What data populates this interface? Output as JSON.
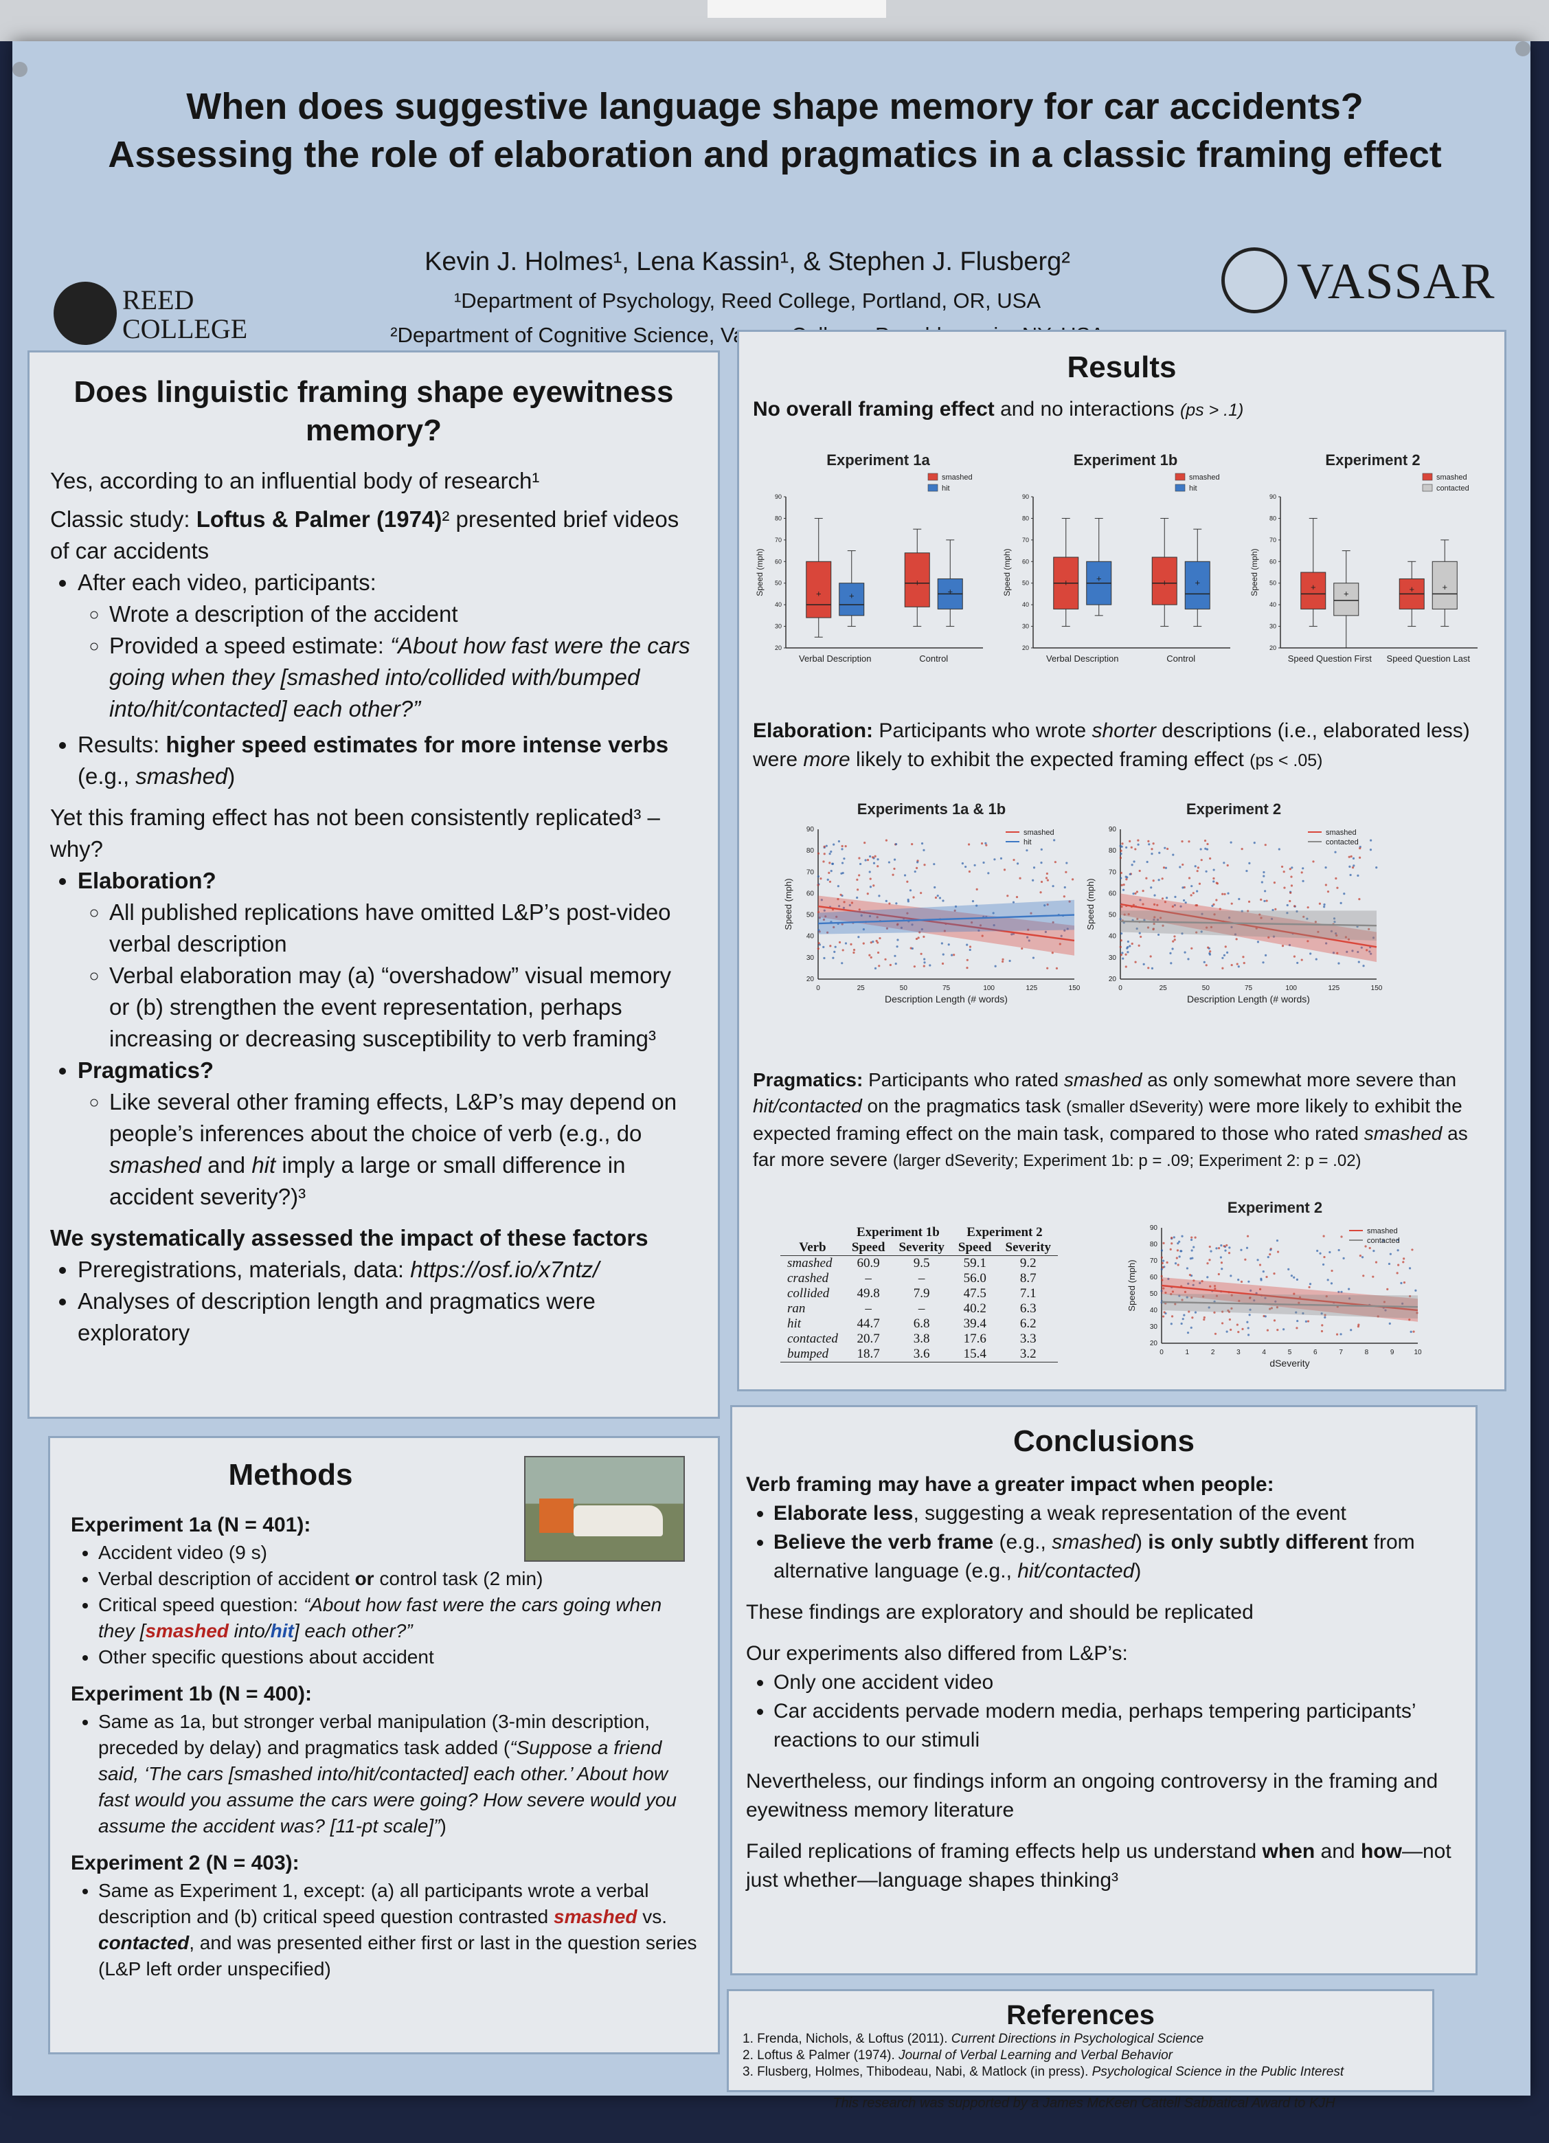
{
  "poster": {
    "title_line1": "When does suggestive language shape memory for car accidents?",
    "title_line2": "Assessing the role of elaboration and pragmatics in a classic framing effect",
    "authors": "Kevin J. Holmes¹, Lena Kassin¹, & Stephen J. Flusberg²",
    "affiliation1": "¹Department of Psychology, Reed College, Portland, OR, USA",
    "affiliation2": "²Department of Cognitive Science, Vassar College, Poughkeepsie, NY, USA",
    "logo_left": "REED COLLEGE",
    "logo_left_line1": "REED",
    "logo_left_line2": "COLLEGE",
    "logo_right": "VASSAR"
  },
  "intro": {
    "heading": "Does linguistic framing shape eyewitness memory?",
    "p1": "Yes, according to an influential body of research¹",
    "p2_bold": "Loftus & Palmer (1974)",
    "p2_pre": "Classic study: ",
    "p2_post": "² presented brief videos of car accidents",
    "b1": "After each video, participants:",
    "b1a": "Wrote a description of the accident",
    "b1b_pre": "Provided a speed estimate: ",
    "b1b_quote": "“About how fast were the cars going when they [smashed into/collided with/bumped into/hit/contacted] each other?”",
    "b2_pre": "Results: ",
    "b2_bold": "higher speed estimates for more intense verbs",
    "b2_post": " (e.g., ",
    "b2_ital": "smashed",
    "b2_end": ")",
    "p3": "Yet this framing effect has not been consistently replicated³ – why?",
    "elab": "Elaboration?",
    "elab_a": "All published replications have omitted L&P’s post-video verbal description",
    "elab_b": "Verbal elaboration may (a) “overshadow” visual memory or (b) strengthen the event representation, perhaps increasing or decreasing susceptibility to verb framing³",
    "prag": "Pragmatics?",
    "prag_a_pre": "Like several other framing effects, L&P’s may depend on people’s inferences about the choice of verb (e.g., do ",
    "prag_a_i1": "smashed",
    "prag_a_mid": " and ",
    "prag_a_i2": "hit",
    "prag_a_post": " imply a large or small difference in accident severity?)³",
    "sys": "We systematically assessed the impact of these factors",
    "sys_a_pre": "Preregistrations, materials, data: ",
    "sys_a_url": "https://osf.io/x7ntz/",
    "sys_b": "Analyses of description length and pragmatics were exploratory"
  },
  "methods": {
    "heading": "Methods",
    "photo_name": "car-accident-photo",
    "e1a_title": "Experiment 1a (N = 401):",
    "e1a_b1": "Accident video (9 s)",
    "e1a_b2_pre": "Verbal description of accident ",
    "e1a_b2_or": "or",
    "e1a_b2_post": " control task (2 min)",
    "e1a_b3_pre": "Critical speed question: ",
    "e1a_b3_q1": "“About how fast were the cars going when they [",
    "e1a_b3_smashed": "smashed",
    "e1a_b3_q2": " into/",
    "e1a_b3_hit": "hit",
    "e1a_b3_q3": "] each other?”",
    "e1a_b4": "Other specific questions about accident",
    "e1b_title": "Experiment 1b (N = 400):",
    "e1b_b1_pre": "Same as 1a, but stronger verbal manipulation (3-min description, preceded by delay) and pragmatics task added (",
    "e1b_b1_quote": "“Suppose a friend said, ‘The cars [smashed into/hit/contacted] each other.’ About how fast would you assume the cars were going? How severe would you assume the accident was? [11-pt scale]”",
    "e1b_b1_end": ")",
    "e2_title": "Experiment 2 (N = 403):",
    "e2_b1_pre": "Same as Experiment 1, except: (a) all participants wrote a verbal description and (b) critical speed question contrasted ",
    "e2_b1_smashed": "smashed",
    "e2_b1_vs": " vs. ",
    "e2_b1_contacted": "contacted",
    "e2_b1_post": ", and was presented either first or last in the question series (L&P left order unspecified)"
  },
  "results": {
    "heading": "Results",
    "r1_bold": "No overall framing effect",
    "r1_rest": " and no interactions ",
    "r1_small": "(ps > .1)",
    "elab_bold": "Elaboration:",
    "elab_rest_1": " Participants who wrote ",
    "elab_i1": "shorter",
    "elab_rest_2": " descriptions (i.e., elaborated less) were ",
    "elab_i2": "more",
    "elab_rest_3": " likely to exhibit the expected framing effect ",
    "elab_small": "(ps < .05)",
    "prag_bold": "Pragmatics:",
    "prag_1": " Participants who rated ",
    "prag_i1": "smashed",
    "prag_2": " as only somewhat more severe than ",
    "prag_i2": "hit/contacted",
    "prag_3": " on the pragmatics task ",
    "prag_small1": "(smaller dSeverity)",
    "prag_4": " were more likely to exhibit the expected framing effect on the main task, compared to those who rated ",
    "prag_i3": "smashed",
    "prag_5": " as far more severe ",
    "prag_small2": "(larger dSeverity; Experiment 1b: p = .09; Experiment 2: p = .02)"
  },
  "table": {
    "header_group": [
      "Experiment 1b",
      "Experiment 2"
    ],
    "columns": [
      "Verb",
      "Speed",
      "Severity",
      "Speed",
      "Severity"
    ],
    "rows": [
      [
        "smashed",
        "60.9",
        "9.5",
        "59.1",
        "9.2"
      ],
      [
        "crashed",
        "–",
        "–",
        "56.0",
        "8.7"
      ],
      [
        "collided",
        "49.8",
        "7.9",
        "47.5",
        "7.1"
      ],
      [
        "ran",
        "–",
        "–",
        "40.2",
        "6.3"
      ],
      [
        "hit",
        "44.7",
        "6.8",
        "39.4",
        "6.2"
      ],
      [
        "contacted",
        "20.7",
        "3.8",
        "17.6",
        "3.3"
      ],
      [
        "bumped",
        "18.7",
        "3.6",
        "15.4",
        "3.2"
      ]
    ]
  },
  "conclusions": {
    "heading": "Conclusions",
    "lead": "Verb framing may have a greater impact when people:",
    "c1_bold": "Elaborate less",
    "c1_rest": ", suggesting a weak representation of the event",
    "c2_bold1": "Believe the verb frame",
    "c2_mid1": " (e.g., ",
    "c2_i1": "smashed",
    "c2_mid2": ") ",
    "c2_bold2": "is only subtly different",
    "c2_mid3": " from alternative language (e.g., ",
    "c2_i2": "hit/contacted",
    "c2_end": ")",
    "p1": "These findings are exploratory and should be replicated",
    "p2": "Our experiments also differed from L&P’s:",
    "p2a": "Only one accident video",
    "p2b": "Car accidents pervade modern media, perhaps tempering participants’ reactions to our stimuli",
    "p3": "Nevertheless, our findings inform an ongoing controversy in the framing and eyewitness memory literature",
    "p4_pre": "Failed replications of framing effects help us understand ",
    "p4_b1": "when",
    "p4_mid": " and ",
    "p4_b2": "how",
    "p4_post": "—not just whether—language shapes thinking³"
  },
  "references": {
    "heading": "References",
    "r1_pre": "1. Frenda, Nichols, & Loftus (2011). ",
    "r1_i": "Current Directions in Psychological Science",
    "r2_pre": "2. Loftus & Palmer (1974). ",
    "r2_i": "Journal of Verbal Learning and Verbal Behavior",
    "r3_pre": "3. Flusberg, Holmes, Thibodeau, Nabi, & Matlock (in press). ",
    "r3_i": "Psychological Science in the Public Interest",
    "funding": "This research was supported by a James McKeen Cattell Sabbatical Award to KJH"
  },
  "colors": {
    "smashed": "#d9463a",
    "hit": "#3d78c4",
    "contacted": "#c9c9c9"
  },
  "chart_data": [
    {
      "id": "exp1a",
      "type": "box",
      "title": "Experiment 1a",
      "ylabel": "Speed (mph)",
      "ylim": [
        20,
        90
      ],
      "yticks": [
        20,
        30,
        40,
        50,
        60,
        70,
        80,
        90
      ],
      "categories": [
        "Verbal Description",
        "Control"
      ],
      "series": [
        {
          "name": "smashed",
          "color": "#d9463a",
          "boxes": [
            {
              "min": 25,
              "q1": 34,
              "median": 40,
              "q3": 60,
              "max": 80,
              "mean": 45
            },
            {
              "min": 30,
              "q1": 39,
              "median": 50,
              "q3": 64,
              "max": 75,
              "mean": 50
            }
          ]
        },
        {
          "name": "hit",
          "color": "#3d78c4",
          "boxes": [
            {
              "min": 30,
              "q1": 35,
              "median": 40,
              "q3": 50,
              "max": 65,
              "mean": 44
            },
            {
              "min": 30,
              "q1": 38,
              "median": 45,
              "q3": 52,
              "max": 70,
              "mean": 46
            }
          ]
        }
      ]
    },
    {
      "id": "exp1b",
      "type": "box",
      "title": "Experiment 1b",
      "ylabel": "Speed (mph)",
      "ylim": [
        20,
        90
      ],
      "yticks": [
        20,
        30,
        40,
        50,
        60,
        70,
        80,
        90
      ],
      "categories": [
        "Verbal Description",
        "Control"
      ],
      "series": [
        {
          "name": "smashed",
          "color": "#d9463a",
          "boxes": [
            {
              "min": 30,
              "q1": 38,
              "median": 50,
              "q3": 62,
              "max": 80,
              "mean": 50
            },
            {
              "min": 30,
              "q1": 40,
              "median": 50,
              "q3": 62,
              "max": 80,
              "mean": 50
            }
          ]
        },
        {
          "name": "hit",
          "color": "#3d78c4",
          "boxes": [
            {
              "min": 35,
              "q1": 40,
              "median": 50,
              "q3": 60,
              "max": 80,
              "mean": 52
            },
            {
              "min": 30,
              "q1": 38,
              "median": 45,
              "q3": 60,
              "max": 75,
              "mean": 50
            }
          ]
        }
      ]
    },
    {
      "id": "exp2",
      "type": "box",
      "title": "Experiment 2",
      "ylabel": "Speed (mph)",
      "ylim": [
        20,
        90
      ],
      "yticks": [
        20,
        30,
        40,
        50,
        60,
        70,
        80,
        90
      ],
      "categories": [
        "Speed Question First",
        "Speed Question Last"
      ],
      "series": [
        {
          "name": "smashed",
          "color": "#d9463a",
          "boxes": [
            {
              "min": 30,
              "q1": 38,
              "median": 45,
              "q3": 55,
              "max": 80,
              "mean": 48
            },
            {
              "min": 30,
              "q1": 38,
              "median": 45,
              "q3": 52,
              "max": 60,
              "mean": 47
            }
          ]
        },
        {
          "name": "contacted",
          "color": "#c9c9c9",
          "boxes": [
            {
              "min": 20,
              "q1": 35,
              "median": 42,
              "q3": 50,
              "max": 65,
              "mean": 45
            },
            {
              "min": 30,
              "q1": 38,
              "median": 45,
              "q3": 60,
              "max": 70,
              "mean": 48
            }
          ]
        }
      ]
    },
    {
      "id": "len1",
      "type": "scatter",
      "title": "Experiments 1a & 1b",
      "xlabel": "Description Length (# words)",
      "ylabel": "Speed (mph)",
      "xlim": [
        0,
        150
      ],
      "ylim": [
        20,
        90
      ],
      "xticks": [
        0,
        25,
        50,
        75,
        100,
        125,
        150
      ],
      "yticks": [
        20,
        30,
        40,
        50,
        60,
        70,
        80,
        90
      ],
      "fits": [
        {
          "name": "smashed",
          "color": "#d9463a",
          "x": [
            0,
            150
          ],
          "y": [
            54,
            38
          ]
        },
        {
          "name": "hit",
          "color": "#3d78c4",
          "x": [
            0,
            150
          ],
          "y": [
            46,
            50
          ]
        }
      ]
    },
    {
      "id": "len2",
      "type": "scatter",
      "title": "Experiment 2",
      "xlabel": "Description Length (# words)",
      "ylabel": "Speed (mph)",
      "xlim": [
        0,
        150
      ],
      "ylim": [
        20,
        90
      ],
      "xticks": [
        0,
        25,
        50,
        75,
        100,
        125,
        150
      ],
      "yticks": [
        20,
        30,
        40,
        50,
        60,
        70,
        80,
        90
      ],
      "fits": [
        {
          "name": "smashed",
          "color": "#d9463a",
          "x": [
            0,
            150
          ],
          "y": [
            55,
            35
          ]
        },
        {
          "name": "contacted",
          "color": "#8a8a8a",
          "x": [
            0,
            150
          ],
          "y": [
            47,
            45
          ]
        }
      ]
    },
    {
      "id": "sev2",
      "type": "scatter",
      "title": "Experiment 2",
      "xlabel": "dSeverity",
      "ylabel": "Speed (mph)",
      "xlim": [
        0,
        10
      ],
      "ylim": [
        20,
        90
      ],
      "xticks": [
        0,
        1,
        2,
        3,
        4,
        5,
        6,
        7,
        8,
        9,
        10
      ],
      "yticks": [
        20,
        30,
        40,
        50,
        60,
        70,
        80,
        90
      ],
      "fits": [
        {
          "name": "smashed",
          "color": "#d9463a",
          "x": [
            0,
            10
          ],
          "y": [
            55,
            40
          ]
        },
        {
          "name": "contacted",
          "color": "#8a8a8a",
          "x": [
            0,
            10
          ],
          "y": [
            45,
            42
          ]
        }
      ]
    }
  ]
}
